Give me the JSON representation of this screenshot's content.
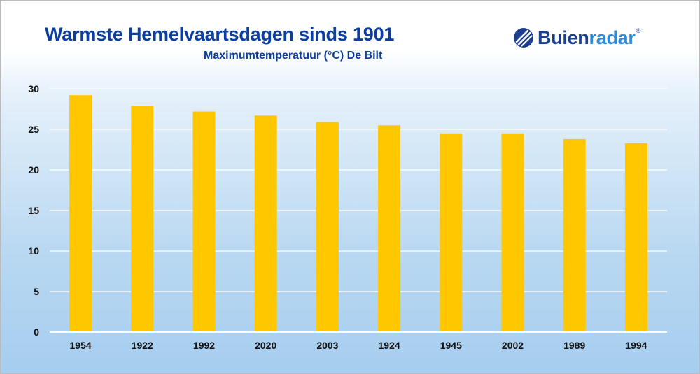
{
  "header": {
    "title": "Warmste Hemelvaartsdagen sinds 1901",
    "subtitle": "Maximumtemperatuur (°C) De Bilt"
  },
  "logo": {
    "part_a": "Buien",
    "part_b": "radar",
    "reg": "®",
    "icon": "buienradar-logo-icon",
    "color_dark": "#1a3f8f",
    "color_light": "#2f8ad8"
  },
  "colors": {
    "bar": "#ffc700",
    "title": "#0b3ea1",
    "grid": "#ffffff",
    "axis_text": "#111111"
  },
  "chart_data": {
    "type": "bar",
    "title": "Warmste Hemelvaartsdagen sinds 1901",
    "subtitle": "Maximumtemperatuur (°C) De Bilt",
    "xlabel": "",
    "ylabel": "",
    "categories": [
      "1954",
      "1922",
      "1992",
      "2020",
      "2003",
      "1924",
      "1945",
      "2002",
      "1989",
      "1994"
    ],
    "values": [
      29.2,
      27.9,
      27.2,
      26.7,
      25.9,
      25.5,
      24.5,
      24.5,
      23.8,
      23.3
    ],
    "ylim": [
      0,
      30
    ],
    "yticks": [
      0,
      5,
      10,
      15,
      20,
      25,
      30
    ],
    "grid": true,
    "legend": "none"
  }
}
